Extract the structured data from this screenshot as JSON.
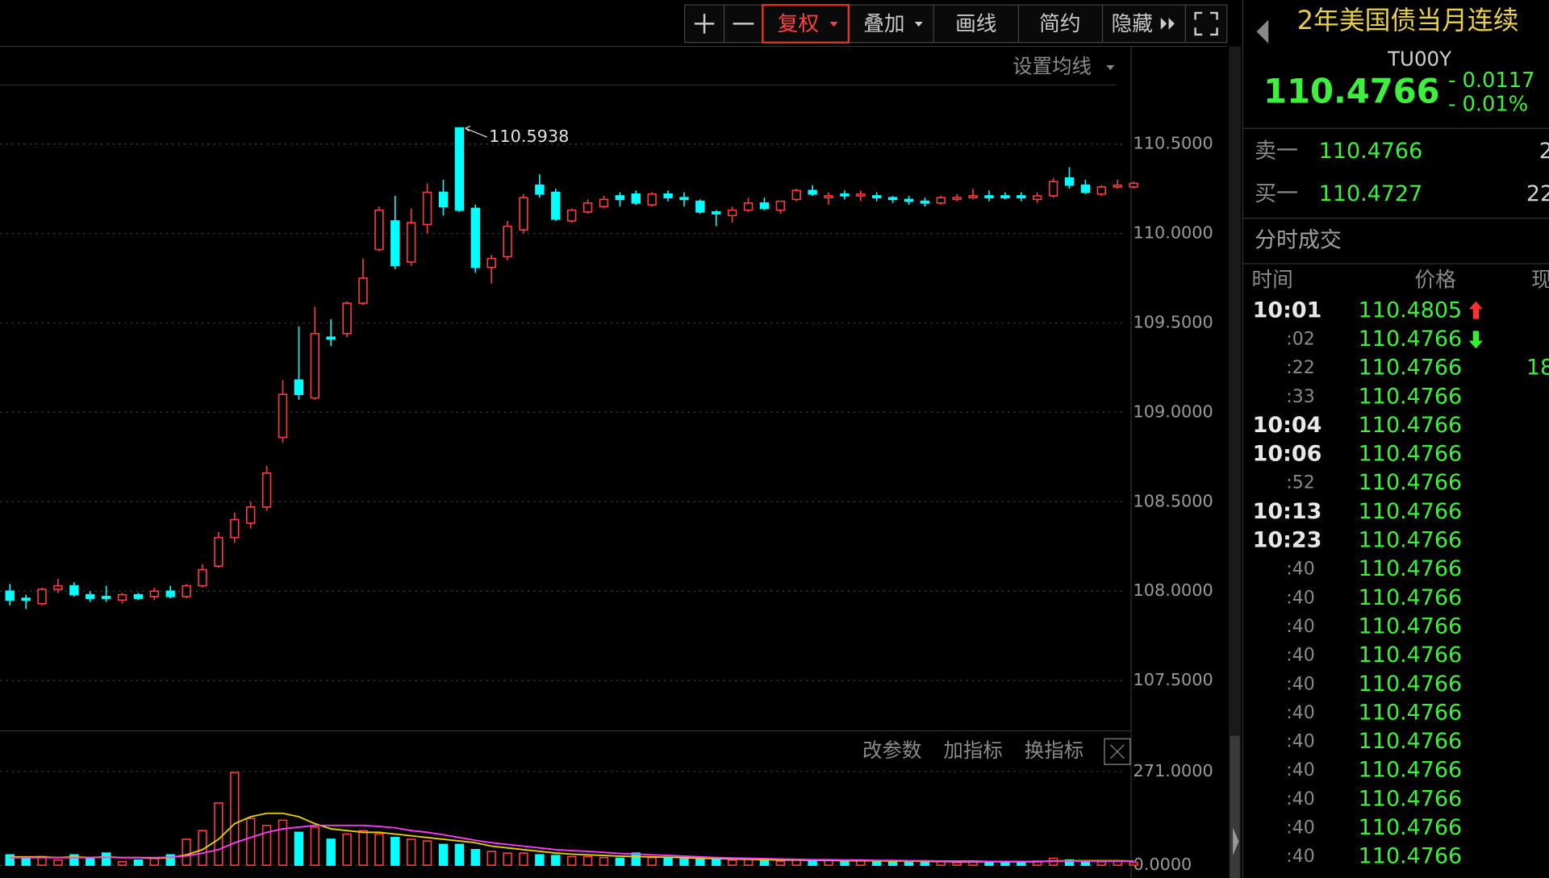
{
  "toolbar": {
    "buttons": [
      "复权",
      "叠加",
      "画线",
      "简约",
      "隐藏"
    ],
    "ma_setting": "设置均线",
    "indicator_buttons": [
      "改参数",
      "加指标",
      "换指标"
    ]
  },
  "chart_data": [
    {
      "type": "candlestick",
      "up_color": "#ff3c3c",
      "down_color": "#00ffff",
      "grid": true,
      "open": [
        108.0,
        107.96,
        107.93,
        108.01,
        108.03,
        107.98,
        107.97,
        107.95,
        107.98,
        107.97,
        108.0,
        107.97,
        108.03,
        108.14,
        108.3,
        108.38,
        108.47,
        108.86,
        109.18,
        109.08,
        109.42,
        109.44,
        109.61,
        109.91,
        110.07,
        109.84,
        110.05,
        110.23,
        110.59,
        110.14,
        109.81,
        109.87,
        110.02,
        110.27,
        110.23,
        110.07,
        110.12,
        110.15,
        110.21,
        110.22,
        110.16,
        110.22,
        110.2,
        110.18,
        110.12,
        110.1,
        110.13,
        110.17,
        110.13,
        110.19,
        110.24,
        110.2,
        110.22,
        110.21,
        110.21,
        110.2,
        110.19,
        110.18,
        110.17,
        110.19,
        110.2,
        110.21,
        110.21,
        110.21,
        110.19,
        110.21,
        110.31,
        110.27,
        110.22,
        110.26,
        110.26
      ],
      "high": [
        108.04,
        107.98,
        108.02,
        108.07,
        108.05,
        108.0,
        108.03,
        107.99,
        107.99,
        108.02,
        108.03,
        108.04,
        108.15,
        108.33,
        108.44,
        108.5,
        108.7,
        109.18,
        109.48,
        109.59,
        109.52,
        109.62,
        109.86,
        110.15,
        110.21,
        110.14,
        110.28,
        110.3,
        110.5938,
        110.16,
        109.88,
        110.07,
        110.22,
        110.33,
        110.25,
        110.14,
        110.19,
        110.21,
        110.23,
        110.24,
        110.23,
        110.24,
        110.23,
        110.19,
        110.13,
        110.15,
        110.2,
        110.2,
        110.18,
        110.25,
        110.27,
        110.23,
        110.24,
        110.24,
        110.23,
        110.21,
        110.21,
        110.2,
        110.21,
        110.22,
        110.25,
        110.24,
        110.23,
        110.23,
        110.23,
        110.31,
        110.37,
        110.3,
        110.27,
        110.3,
        110.29
      ],
      "low": [
        107.92,
        107.9,
        107.92,
        107.99,
        107.97,
        107.94,
        107.94,
        107.93,
        107.95,
        107.95,
        107.96,
        107.96,
        108.02,
        108.13,
        108.27,
        108.35,
        108.45,
        108.83,
        109.07,
        109.07,
        109.37,
        109.42,
        109.6,
        109.9,
        109.8,
        109.82,
        110.0,
        110.1,
        110.12,
        109.78,
        109.72,
        109.85,
        110.0,
        110.2,
        110.07,
        110.06,
        110.11,
        110.14,
        110.15,
        110.16,
        110.15,
        110.18,
        110.15,
        110.11,
        110.04,
        110.06,
        110.12,
        110.13,
        110.11,
        110.18,
        110.21,
        110.16,
        110.19,
        110.18,
        110.18,
        110.17,
        110.16,
        110.15,
        110.16,
        110.18,
        110.19,
        110.18,
        110.19,
        110.18,
        110.17,
        110.2,
        110.25,
        110.22,
        110.21,
        110.25,
        110.25
      ],
      "close": [
        107.95,
        107.95,
        108.01,
        108.03,
        107.98,
        107.96,
        107.96,
        107.98,
        107.96,
        108.0,
        107.97,
        108.03,
        108.12,
        108.3,
        108.4,
        108.47,
        108.66,
        109.1,
        109.1,
        109.44,
        109.41,
        109.61,
        109.75,
        110.13,
        109.82,
        110.06,
        110.23,
        110.15,
        110.13,
        109.81,
        109.86,
        110.04,
        110.2,
        110.22,
        110.08,
        110.13,
        110.17,
        110.19,
        110.19,
        110.17,
        110.22,
        110.2,
        110.19,
        110.12,
        110.11,
        110.13,
        110.17,
        110.14,
        110.18,
        110.24,
        110.22,
        110.21,
        110.21,
        110.22,
        110.2,
        110.19,
        110.18,
        110.17,
        110.2,
        110.2,
        110.21,
        110.2,
        110.2,
        110.2,
        110.21,
        110.29,
        110.27,
        110.23,
        110.26,
        110.27,
        110.28
      ],
      "ylim": [
        107.23,
        111.04
      ],
      "yticks": [
        {
          "value": 107.5,
          "label": "107.5000"
        },
        {
          "value": 108,
          "label": "108.0000"
        },
        {
          "value": 108.5,
          "label": "108.5000"
        },
        {
          "value": 109,
          "label": "109.0000"
        },
        {
          "value": 109.5,
          "label": "109.5000"
        },
        {
          "value": 110,
          "label": "110.0000"
        },
        {
          "value": 110.5,
          "label": "110.5000"
        }
      ]
    },
    {
      "type": "bar",
      "grid": true,
      "values": [
        30,
        20,
        25,
        15,
        30,
        20,
        35,
        10,
        15,
        20,
        30,
        75,
        100,
        180,
        268,
        135,
        115,
        130,
        95,
        110,
        75,
        90,
        100,
        90,
        80,
        75,
        70,
        60,
        60,
        45,
        40,
        35,
        35,
        30,
        28,
        25,
        25,
        22,
        20,
        35,
        22,
        20,
        18,
        20,
        18,
        15,
        18,
        15,
        12,
        15,
        12,
        15,
        12,
        15,
        10,
        12,
        10,
        12,
        10,
        8,
        12,
        10,
        8,
        10,
        12,
        20,
        15,
        12,
        10,
        12,
        8
      ],
      "series": [
        {
          "color": "#e6d200",
          "values": [
            24,
            24,
            24,
            22,
            24,
            22,
            24,
            22,
            22,
            20,
            22,
            30,
            45,
            75,
            120,
            140,
            150,
            150,
            140,
            120,
            105,
            100,
            95,
            95,
            90,
            85,
            80,
            75,
            70,
            65,
            55,
            50,
            45,
            40,
            35,
            32,
            30,
            28,
            26,
            25,
            24,
            23,
            22,
            20,
            19,
            18,
            17,
            16,
            15,
            15,
            14,
            14,
            13,
            13,
            13,
            12,
            12,
            11,
            11,
            10,
            10,
            10,
            10,
            10,
            10,
            12,
            13,
            13,
            13,
            13,
            12
          ]
        },
        {
          "color": "#ff3cff",
          "values": [
            22,
            22,
            22,
            22,
            22,
            22,
            23,
            22,
            22,
            22,
            23,
            27,
            35,
            45,
            65,
            80,
            95,
            105,
            110,
            115,
            115,
            115,
            115,
            112,
            108,
            100,
            95,
            88,
            80,
            72,
            65,
            60,
            55,
            50,
            45,
            42,
            40,
            37,
            34,
            32,
            30,
            28,
            26,
            24,
            22,
            21,
            20,
            19,
            18,
            17,
            16,
            16,
            15,
            15,
            14,
            14,
            13,
            13,
            12,
            12,
            12,
            11,
            11,
            11,
            11,
            12,
            12,
            12,
            12,
            12,
            12
          ]
        }
      ],
      "ylim": [
        -37,
        374
      ],
      "yticks": [
        {
          "value": 0,
          "label": "0.0000"
        },
        {
          "value": 271,
          "label": "271.0000"
        }
      ]
    }
  ],
  "quote": {
    "title": "2年美国债当月连续",
    "code": "TU00Y",
    "price": 110.4766,
    "change": "- 0.0117",
    "change_pct": "- 0.01%",
    "sell": {
      "label": "卖一",
      "price": 110.4766,
      "volume": "2"
    },
    "buy": {
      "label": "买一",
      "price": 110.4727,
      "volume": "22"
    }
  },
  "trades": {
    "title": "分时成交",
    "headers": [
      "时间",
      "价格",
      "现"
    ],
    "rows": [
      {
        "time": "10:01",
        "price": 110.4805
      },
      {
        "time": ":02",
        "price": 110.4766
      },
      {
        "time": ":22",
        "price": 110.4766,
        "volume": "18"
      },
      {
        "time": ":33",
        "price": 110.4766
      },
      {
        "time": "10:04",
        "price": 110.4766
      },
      {
        "time": "10:06",
        "price": 110.4766
      },
      {
        "time": ":52",
        "price": 110.4766
      },
      {
        "time": "10:13",
        "price": 110.4766
      },
      {
        "time": "10:23",
        "price": 110.4766
      },
      {
        "time": ":40",
        "price": 110.4766
      },
      {
        "time": ":40",
        "price": 110.4766
      },
      {
        "time": ":40",
        "price": 110.4766
      },
      {
        "time": ":40",
        "price": 110.4766
      },
      {
        "time": ":40",
        "price": 110.4766
      },
      {
        "time": ":40",
        "price": 110.4766
      },
      {
        "time": ":40",
        "price": 110.4766
      },
      {
        "time": ":40",
        "price": 110.4766
      },
      {
        "time": ":40",
        "price": 110.4766
      },
      {
        "time": ":40",
        "price": 110.4766
      },
      {
        "time": ":40",
        "price": 110.4766
      }
    ]
  }
}
